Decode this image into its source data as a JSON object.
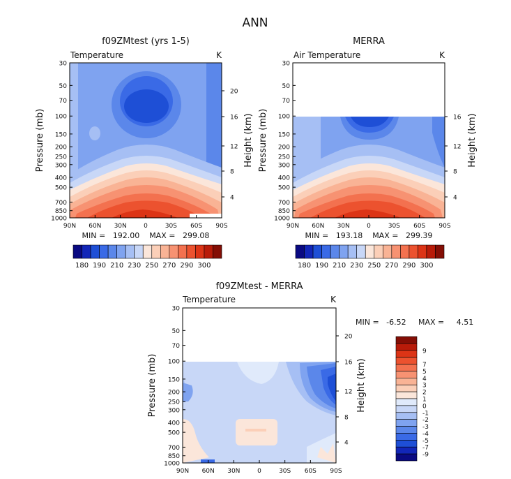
{
  "page_title": "ANN",
  "colors": {
    "temperature_scale": [
      "#0a0a82",
      "#1226b8",
      "#1e4fd6",
      "#3a6ae6",
      "#5b87ea",
      "#7fa3f0",
      "#a6bff4",
      "#c8d7f7",
      "#fbe6da",
      "#fbcfb8",
      "#f9b395",
      "#f79272",
      "#f3714f",
      "#ec522f",
      "#dc3416",
      "#b81b09",
      "#840e05"
    ],
    "difference_scale": [
      "#0a0a82",
      "#1226b8",
      "#1e4fd6",
      "#3a6ae6",
      "#5b87ea",
      "#7fa3f0",
      "#a6bff4",
      "#c8d7f7",
      "#e0eafb",
      "#fbe6da",
      "#fbcfb8",
      "#f9b395",
      "#f79272",
      "#f3714f",
      "#ec522f",
      "#dc3416",
      "#b81b09",
      "#840e05"
    ]
  },
  "chart_data": [
    {
      "type": "heatmap",
      "title": "f09ZMtest (yrs 1-5)",
      "subtitle": "Temperature",
      "units": "K",
      "ylabel": "Pressure (mb)",
      "y2label": "Height (km)",
      "x_tick_labels": [
        "90N",
        "60N",
        "30N",
        "0",
        "30S",
        "60S",
        "90S"
      ],
      "y_tick_labels": [
        "30",
        "50",
        "70",
        "100",
        "150",
        "200",
        "250",
        "300",
        "400",
        "500",
        "700",
        "850",
        "1000"
      ],
      "y2_tick_labels": [
        "20",
        "16",
        "12",
        "8",
        "4"
      ],
      "stats": "MIN =   192.00    MAX =   299.08",
      "levels": [
        "180",
        "190",
        "210",
        "230",
        "250",
        "270",
        "290",
        "300"
      ]
    },
    {
      "type": "heatmap",
      "title": "MERRA",
      "subtitle": "Air Temperature",
      "units": "K",
      "ylabel": "Pressure (mb)",
      "y2label": "Height (km)",
      "x_tick_labels": [
        "90N",
        "60N",
        "30N",
        "0",
        "30S",
        "60S",
        "90S"
      ],
      "y_tick_labels": [
        "30",
        "50",
        "70",
        "100",
        "150",
        "200",
        "250",
        "300",
        "400",
        "500",
        "700",
        "850",
        "1000"
      ],
      "y2_tick_labels": [
        "16",
        "12",
        "8",
        "4"
      ],
      "stats": "MIN =   193.18    MAX =   299.39",
      "levels": [
        "180",
        "190",
        "210",
        "230",
        "250",
        "270",
        "290",
        "300"
      ]
    },
    {
      "type": "heatmap",
      "title": "f09ZMtest - MERRA",
      "subtitle": "Temperature",
      "units": "K",
      "ylabel": "Pressure (mb)",
      "y2label": "Height (km)",
      "x_tick_labels": [
        "90N",
        "60N",
        "30N",
        "0",
        "30S",
        "60S",
        "90S"
      ],
      "y_tick_labels": [
        "30",
        "50",
        "70",
        "100",
        "150",
        "200",
        "250",
        "300",
        "400",
        "500",
        "700",
        "850",
        "1000"
      ],
      "y2_tick_labels": [
        "20",
        "16",
        "12",
        "8",
        "4"
      ],
      "stats_min": "MIN =   -6.52",
      "stats_max": "MAX =     4.51",
      "levels": [
        "9",
        "7",
        "5",
        "4",
        "3",
        "2",
        "1",
        "0",
        "-1",
        "-2",
        "-3",
        "-4",
        "-5",
        "-7",
        "-9"
      ]
    }
  ]
}
